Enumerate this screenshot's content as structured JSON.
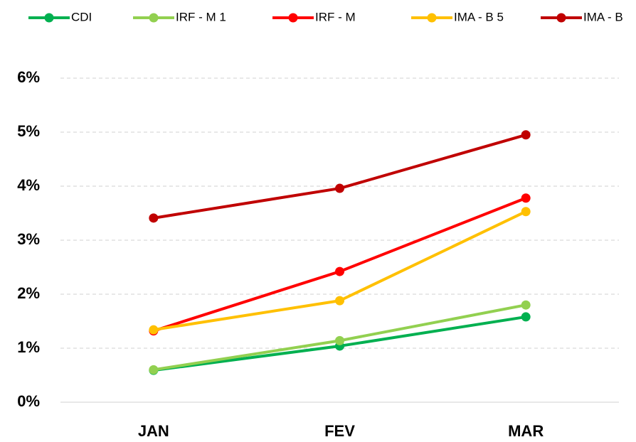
{
  "chart_data": {
    "type": "line",
    "categories": [
      "JAN",
      "FEV",
      "MAR"
    ],
    "series": [
      {
        "name": "CDI",
        "color": "#00b050",
        "values": [
          0.59,
          1.04,
          1.58
        ]
      },
      {
        "name": "IRF - M 1",
        "color": "#92d050",
        "values": [
          0.6,
          1.14,
          1.8
        ]
      },
      {
        "name": "IRF - M",
        "color": "#ff0000",
        "values": [
          1.32,
          2.42,
          3.78
        ]
      },
      {
        "name": "IMA - B 5",
        "color": "#ffc000",
        "values": [
          1.34,
          1.88,
          3.53
        ]
      },
      {
        "name": "IMA - B",
        "color": "#c00000",
        "values": [
          3.41,
          3.96,
          4.95
        ]
      }
    ],
    "ylim": [
      0,
      6
    ],
    "yticks": [
      {
        "value": 0,
        "label": "0%"
      },
      {
        "value": 1,
        "label": "1%"
      },
      {
        "value": 2,
        "label": "2%"
      },
      {
        "value": 3,
        "label": "3%"
      },
      {
        "value": 4,
        "label": "4%"
      },
      {
        "value": 5,
        "label": "5%"
      },
      {
        "value": 6,
        "label": "6%"
      }
    ],
    "grid": true,
    "legend": "top"
  }
}
